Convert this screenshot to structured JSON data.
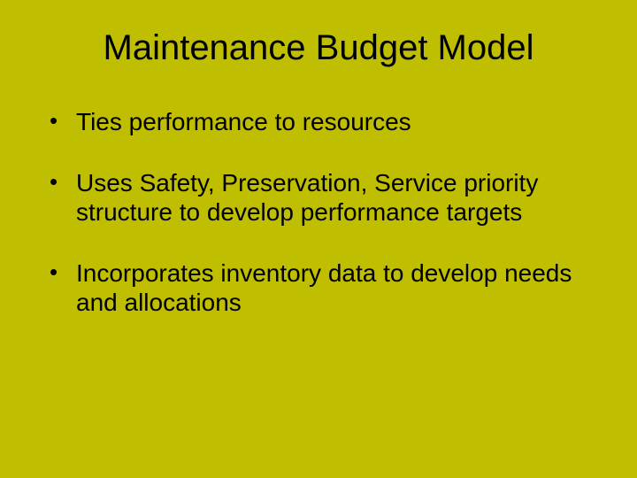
{
  "slide": {
    "background_color": "#bfbe01",
    "text_color": "#000000",
    "title": "Maintenance Budget Model",
    "title_fontsize": 40,
    "body_fontsize": 28,
    "bullets": [
      "Ties performance to resources",
      "Uses Safety, Preservation, Service priority structure to develop performance targets",
      "Incorporates inventory data to develop needs and allocations"
    ]
  }
}
